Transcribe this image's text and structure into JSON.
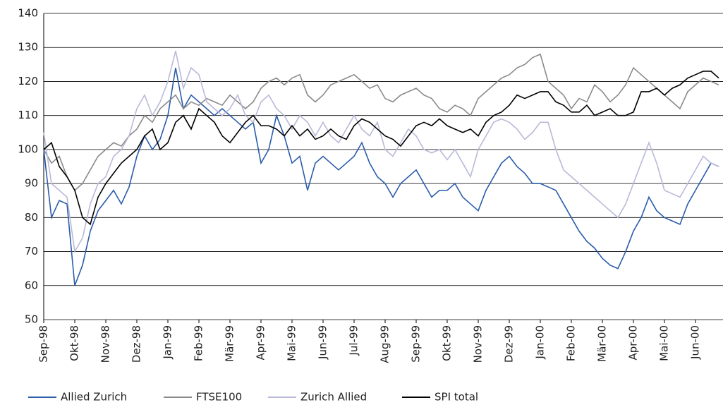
{
  "chart_data": {
    "type": "line",
    "categories": [
      "Sep-98",
      null,
      null,
      null,
      "Okt-98",
      null,
      null,
      null,
      "Nov-98",
      null,
      null,
      null,
      "Dez-98",
      null,
      null,
      null,
      "Jan-99",
      null,
      null,
      null,
      "Feb-99",
      null,
      null,
      null,
      "Mär-99",
      null,
      null,
      null,
      "Apr-99",
      null,
      null,
      null,
      "Mai-99",
      null,
      null,
      null,
      "Jun-99",
      null,
      null,
      null,
      "Jul-99",
      null,
      null,
      null,
      "Aug-99",
      null,
      null,
      null,
      "Sep-99",
      null,
      null,
      null,
      "Okt-99",
      null,
      null,
      null,
      "Nov-99",
      null,
      null,
      null,
      "Dez-99",
      null,
      null,
      null,
      "Jan-00",
      null,
      null,
      null,
      "Feb-00",
      null,
      null,
      null,
      "Mär-00",
      null,
      null,
      null,
      "Apr-00",
      null,
      null,
      null,
      "Mai-00",
      null,
      null,
      null,
      "Jun-00",
      null,
      null,
      null
    ],
    "series": [
      {
        "name": "Allied Zurich",
        "color": "#2a5caa",
        "values": [
          100,
          80,
          85,
          84,
          60,
          66,
          76,
          82,
          85,
          88,
          84,
          89,
          98,
          104,
          100,
          103,
          110,
          124,
          112,
          116,
          114,
          112,
          110,
          112,
          110,
          108,
          106,
          108,
          96,
          100,
          110,
          104,
          96,
          98,
          88,
          96,
          98,
          96,
          94,
          96,
          98,
          102,
          96,
          92,
          90,
          86,
          90,
          92,
          94,
          90,
          86,
          88,
          88,
          90,
          86,
          84,
          82,
          88,
          92,
          96,
          98,
          95,
          93,
          90,
          90,
          89,
          88,
          84,
          80,
          76,
          73,
          71,
          68,
          66,
          65,
          70,
          76,
          80,
          86,
          82,
          80,
          79,
          78,
          84,
          88,
          92,
          96,
          95
        ]
      },
      {
        "name": "FTSE100",
        "color": "#8a8a8a",
        "values": [
          100,
          96,
          98,
          92,
          88,
          90,
          94,
          98,
          100,
          102,
          101,
          104,
          106,
          110,
          108,
          112,
          114,
          116,
          112,
          114,
          113,
          115,
          114,
          113,
          116,
          114,
          112,
          114,
          118,
          120,
          121,
          119,
          121,
          122,
          116,
          114,
          116,
          119,
          120,
          121,
          122,
          120,
          118,
          119,
          115,
          114,
          116,
          117,
          118,
          116,
          115,
          112,
          111,
          113,
          112,
          110,
          115,
          117,
          119,
          121,
          122,
          124,
          125,
          127,
          128,
          120,
          118,
          116,
          112,
          115,
          114,
          119,
          117,
          114,
          116,
          119,
          124,
          122,
          120,
          118,
          116,
          114,
          112,
          117,
          119,
          121,
          120,
          119
        ]
      },
      {
        "name": "Zurich Allied",
        "color": "#b9b9d9",
        "values": [
          105,
          90,
          88,
          86,
          70,
          74,
          84,
          90,
          92,
          98,
          100,
          104,
          112,
          116,
          110,
          114,
          120,
          129,
          118,
          124,
          122,
          114,
          112,
          110,
          112,
          116,
          110,
          108,
          114,
          116,
          112,
          110,
          106,
          110,
          108,
          104,
          108,
          104,
          102,
          106,
          110,
          106,
          104,
          108,
          100,
          98,
          102,
          106,
          104,
          100,
          99,
          100,
          97,
          100,
          96,
          92,
          100,
          104,
          108,
          109,
          108,
          106,
          103,
          105,
          108,
          108,
          100,
          94,
          92,
          90,
          88,
          86,
          84,
          82,
          80,
          84,
          90,
          96,
          102,
          96,
          88,
          87,
          86,
          90,
          94,
          98,
          96,
          95
        ]
      },
      {
        "name": "SPI total",
        "color": "#000000",
        "values": [
          100,
          102,
          95,
          92,
          88,
          80,
          78,
          86,
          90,
          93,
          96,
          98,
          100,
          104,
          106,
          100,
          102,
          108,
          110,
          106,
          112,
          110,
          108,
          104,
          102,
          105,
          108,
          110,
          107,
          107,
          106,
          104,
          107,
          104,
          106,
          103,
          104,
          106,
          104,
          103,
          107,
          109,
          108,
          106,
          104,
          103,
          101,
          104,
          107,
          108,
          107,
          109,
          107,
          106,
          105,
          106,
          104,
          108,
          110,
          111,
          113,
          116,
          115,
          116,
          117,
          117,
          114,
          113,
          111,
          111,
          113,
          110,
          111,
          112,
          110,
          110,
          111,
          117,
          117,
          118,
          116,
          118,
          119,
          121,
          122,
          123,
          123,
          121
        ]
      }
    ],
    "ylim": [
      50,
      140
    ],
    "yticks": [
      50,
      60,
      70,
      80,
      90,
      100,
      110,
      120,
      130,
      140
    ],
    "grid": true
  }
}
